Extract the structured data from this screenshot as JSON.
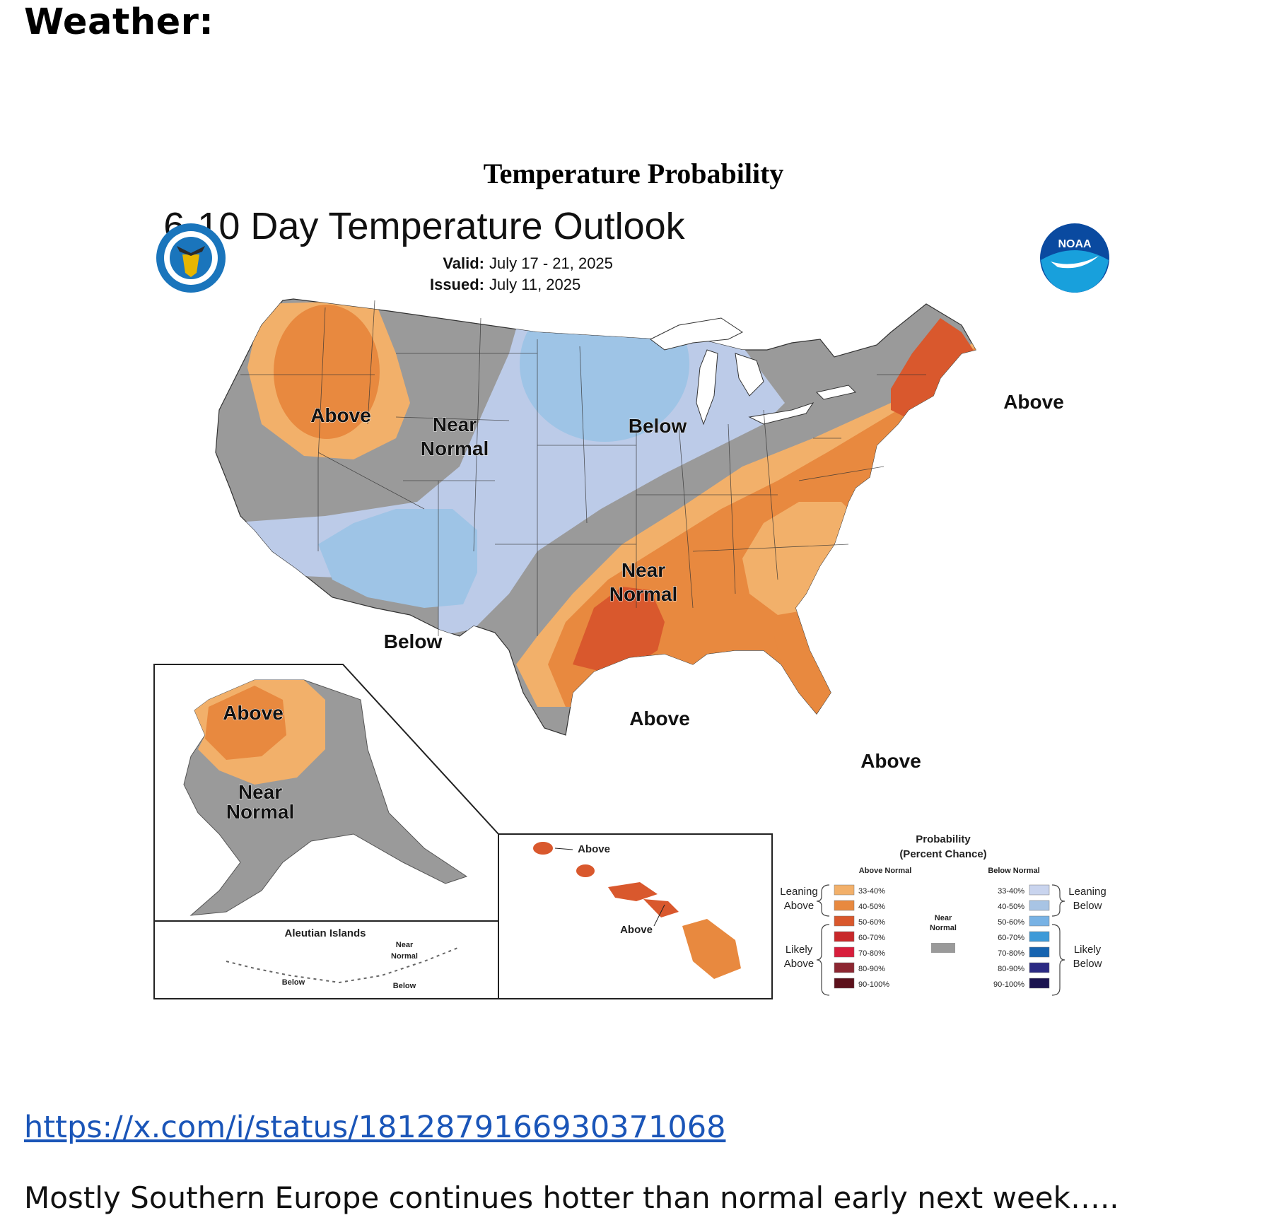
{
  "heading": "Weather:",
  "figure_title": "Temperature Probability",
  "map": {
    "title": "6-10 Day Temperature Outlook",
    "valid_label": "Valid:",
    "valid_value": "July 17 - 21, 2025",
    "issued_label": "Issued:",
    "issued_value": "July 11, 2025",
    "noaa_logo_text": "NOAA",
    "icons": [
      "doc-seal-icon",
      "noaa-logo-icon"
    ],
    "labels": {
      "nw_above": "Above",
      "near_normal_top_1": "Near",
      "near_normal_top_2": "Normal",
      "midwest_below": "Below",
      "sw_below": "Below",
      "ne_above": "Above",
      "central_near_1": "Near",
      "central_near_2": "Normal",
      "gulf_above": "Above",
      "fl_above": "Above",
      "ak_above": "Above",
      "ak_near_1": "Near",
      "ak_near_2": "Normal",
      "aleutian_title": "Aleutian Islands",
      "aleutian_near_1": "Near",
      "aleutian_near_2": "Normal",
      "aleutian_below_1": "Below",
      "aleutian_below_2": "Below",
      "hi_above_1": "Above",
      "hi_above_2": "Above"
    },
    "colors": {
      "near_normal": "#9a9a9a",
      "above_33_40": "#f2b06a",
      "above_40_50": "#e8893f",
      "above_50_60": "#d9582d",
      "below_33_40": "#bccbe8",
      "below_40_50": "#9ec4e6"
    },
    "legend": {
      "title_1": "Probability",
      "title_2": "(Percent Chance)",
      "above_header": "Above Normal",
      "below_header": "Below Normal",
      "leaning_above_1": "Leaning",
      "leaning_above_2": "Above",
      "likely_above_1": "Likely",
      "likely_above_2": "Above",
      "leaning_below_1": "Leaning",
      "leaning_below_2": "Below",
      "likely_below_1": "Likely",
      "likely_below_2": "Below",
      "near_normal_1": "Near",
      "near_normal_2": "Normal",
      "above_bins": [
        {
          "range": "33-40%",
          "color": "#f2b06a"
        },
        {
          "range": "40-50%",
          "color": "#e8893f"
        },
        {
          "range": "50-60%",
          "color": "#d9582d"
        },
        {
          "range": "60-70%",
          "color": "#c8282a"
        },
        {
          "range": "70-80%",
          "color": "#d81e3c"
        },
        {
          "range": "80-90%",
          "color": "#8c2631"
        },
        {
          "range": "90-100%",
          "color": "#5c111b"
        }
      ],
      "below_bins": [
        {
          "range": "33-40%",
          "color": "#c9d4ee"
        },
        {
          "range": "40-50%",
          "color": "#a8c4e4"
        },
        {
          "range": "50-60%",
          "color": "#78b2e4"
        },
        {
          "range": "60-70%",
          "color": "#3d9ad8"
        },
        {
          "range": "70-80%",
          "color": "#1764b0"
        },
        {
          "range": "80-90%",
          "color": "#2b2a83"
        },
        {
          "range": "90-100%",
          "color": "#1b1450"
        }
      ],
      "near_normal_color": "#9a9a9a"
    }
  },
  "link_text": "https://x.com/i/status/1812879166930371068",
  "caption": "Mostly Southern Europe continues hotter than normal early next week….."
}
